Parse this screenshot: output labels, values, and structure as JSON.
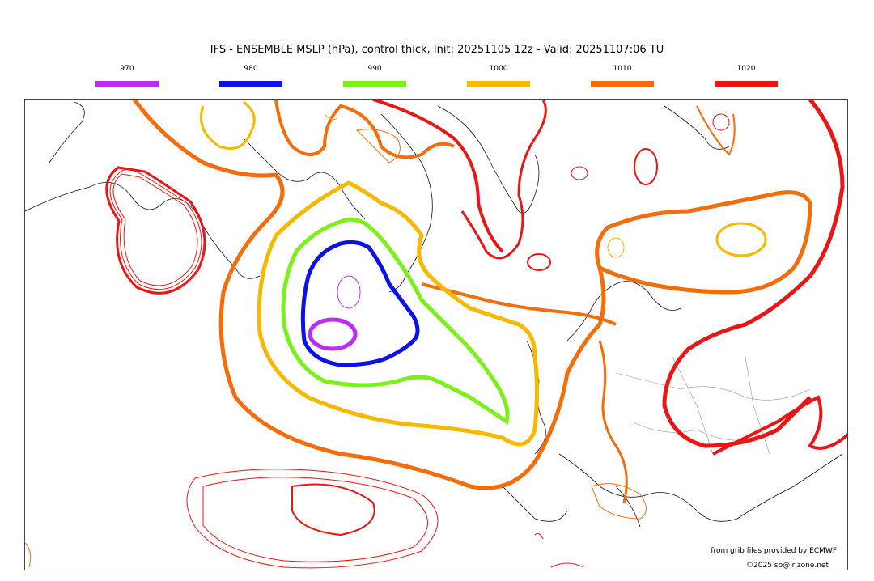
{
  "title": "IFS - ENSEMBLE MSLP (hPa), control thick, Init: 20251105 12z - Valid: 20251107:06 TU",
  "legend": [
    {
      "label": "970",
      "color": "#bf2cf0"
    },
    {
      "label": "980",
      "color": "#0a12e6"
    },
    {
      "label": "990",
      "color": "#7cf01a"
    },
    {
      "label": "1000",
      "color": "#f7b800"
    },
    {
      "label": "1010",
      "color": "#f56c0a"
    },
    {
      "label": "1020",
      "color": "#ea1515"
    }
  ],
  "credits": {
    "source": "from grib files provided by ECMWF",
    "copyright": "©2025 sb@irizone.net"
  }
}
